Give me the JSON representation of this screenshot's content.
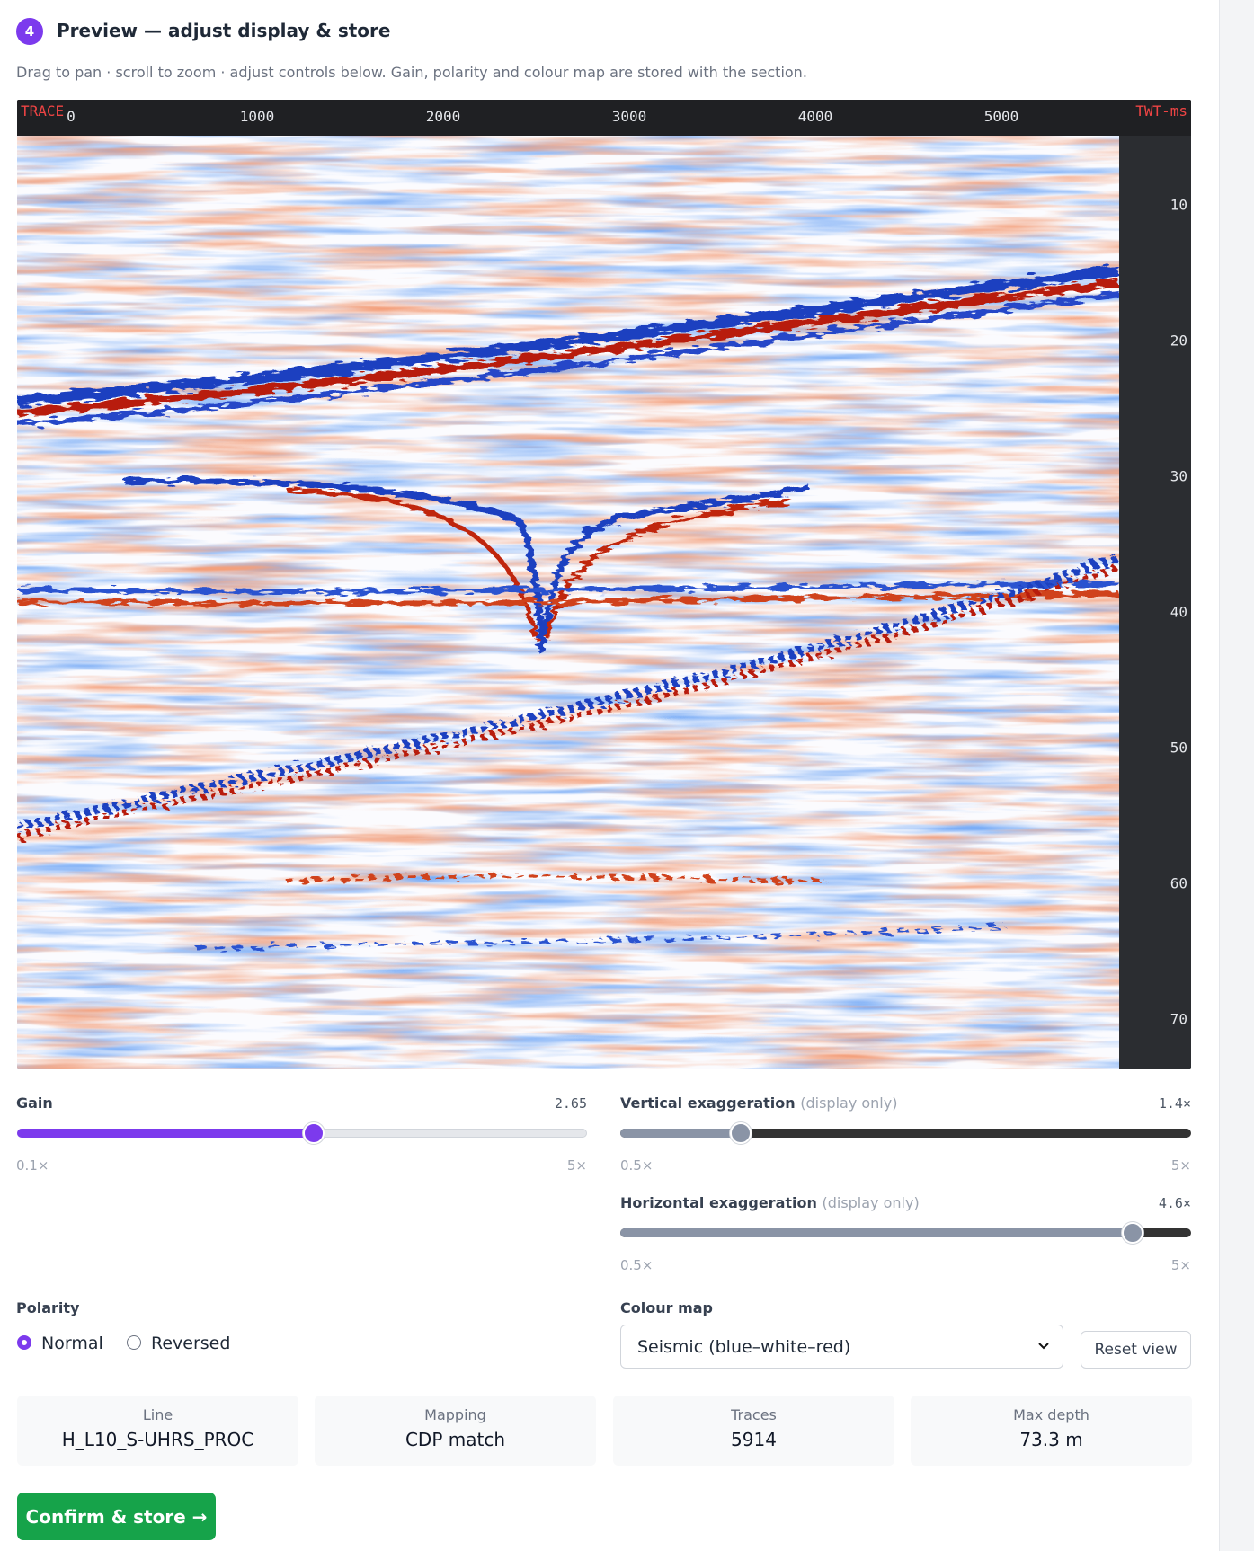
{
  "header": {
    "step": "4",
    "title": "Preview — adjust display & store",
    "subtitle": "Drag to pan · scroll to zoom · adjust controls below. Gain, polarity and colour map are stored with the section."
  },
  "section": {
    "x_axis_label": "TRACE",
    "x_ticks": [
      "0",
      "1000",
      "2000",
      "3000",
      "4000",
      "5000"
    ],
    "y_axis_label": "TWT-ms",
    "y_ticks": [
      "10",
      "20",
      "30",
      "40",
      "50",
      "60",
      "70"
    ]
  },
  "controls": {
    "gain": {
      "label": "Gain",
      "value": "2.65",
      "min": "0.1×",
      "max": "5×"
    },
    "vertical_exaggeration": {
      "label": "Vertical exaggeration",
      "note": "(display only)",
      "value": "1.4×",
      "min": "0.5×",
      "max": "5×"
    },
    "horizontal_exaggeration": {
      "label": "Horizontal exaggeration",
      "note": "(display only)",
      "value": "4.6×",
      "min": "0.5×",
      "max": "5×"
    },
    "polarity": {
      "label": "Polarity",
      "options": [
        "Normal",
        "Reversed"
      ]
    },
    "colour_map": {
      "label": "Colour map",
      "selected": "Seismic (blue–white–red)"
    },
    "reset_button": "Reset view"
  },
  "info_cards": [
    {
      "label": "Line",
      "value": "H_L10_S-UHRS_PROC"
    },
    {
      "label": "Mapping",
      "value": "CDP match"
    },
    {
      "label": "Traces",
      "value": "5914"
    },
    {
      "label": "Max depth",
      "value": "73.3 m"
    }
  ],
  "confirm_button": "Confirm & store →"
}
